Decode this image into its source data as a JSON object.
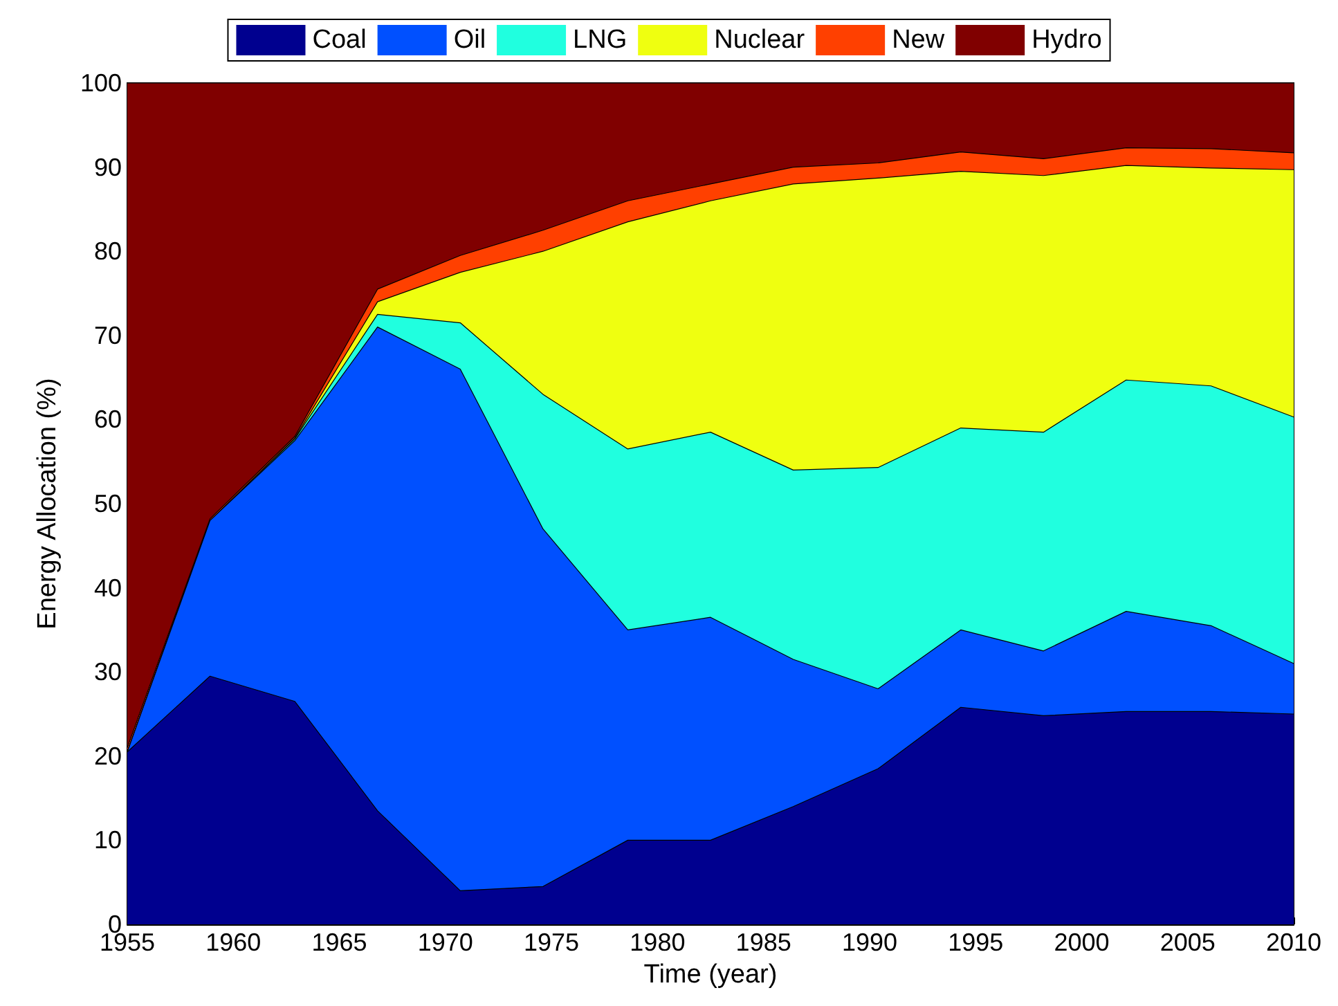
{
  "chart_data": {
    "type": "area",
    "stacked": true,
    "xlabel": "Time (year)",
    "ylabel": "Energy Allocation (%)",
    "x": [
      1955,
      1958.9,
      1962.9,
      1966.8,
      1970.7,
      1974.6,
      1978.6,
      1982.5,
      1986.4,
      1990.4,
      1994.3,
      1998.2,
      2002.1,
      2006.1,
      2010
    ],
    "series": [
      {
        "name": "Coal",
        "color": "#00008f",
        "values": [
          20.5,
          29.5,
          26.5,
          13.5,
          4,
          4.5,
          10,
          10,
          14,
          18.5,
          25.8,
          24.8,
          25.3,
          25.3,
          25
        ]
      },
      {
        "name": "Oil",
        "color": "#0050ff",
        "values": [
          0,
          18.5,
          31,
          57.5,
          62,
          42.5,
          25,
          26.5,
          17.5,
          9.5,
          9.2,
          7.7,
          11.9,
          10.2,
          6
        ]
      },
      {
        "name": "LNG",
        "color": "#20ffdf",
        "values": [
          0,
          0,
          0.2,
          1.5,
          5.5,
          16,
          21.5,
          22,
          22.5,
          26.3,
          24,
          26,
          27.5,
          28.5,
          29.3
        ]
      },
      {
        "name": "Nuclear",
        "color": "#efff10",
        "values": [
          0,
          0,
          0.1,
          1.5,
          6,
          17,
          27,
          27.5,
          34,
          34.4,
          30.5,
          30.5,
          25.5,
          25.9,
          29.4
        ]
      },
      {
        "name": "New",
        "color": "#ff4000",
        "values": [
          0.5,
          0.2,
          0.2,
          1.5,
          2,
          2.5,
          2.5,
          2,
          2,
          1.8,
          2.3,
          2,
          2.1,
          2.3,
          2
        ]
      },
      {
        "name": "Hydro",
        "color": "#800000",
        "values": [
          79,
          51.8,
          42,
          24.5,
          20.5,
          17.5,
          14,
          12,
          10,
          9.5,
          8.2,
          9,
          7.7,
          7.8,
          8.3
        ]
      }
    ],
    "xlim": [
      1955,
      2010
    ],
    "xticks": [
      1955,
      1960,
      1965,
      1970,
      1975,
      1980,
      1985,
      1990,
      1995,
      2000,
      2005,
      2010
    ],
    "ylim": [
      0,
      100
    ],
    "yticks": [
      0,
      10,
      20,
      30,
      40,
      50,
      60,
      70,
      80,
      90,
      100
    ],
    "grid": false,
    "legend": "top"
  }
}
